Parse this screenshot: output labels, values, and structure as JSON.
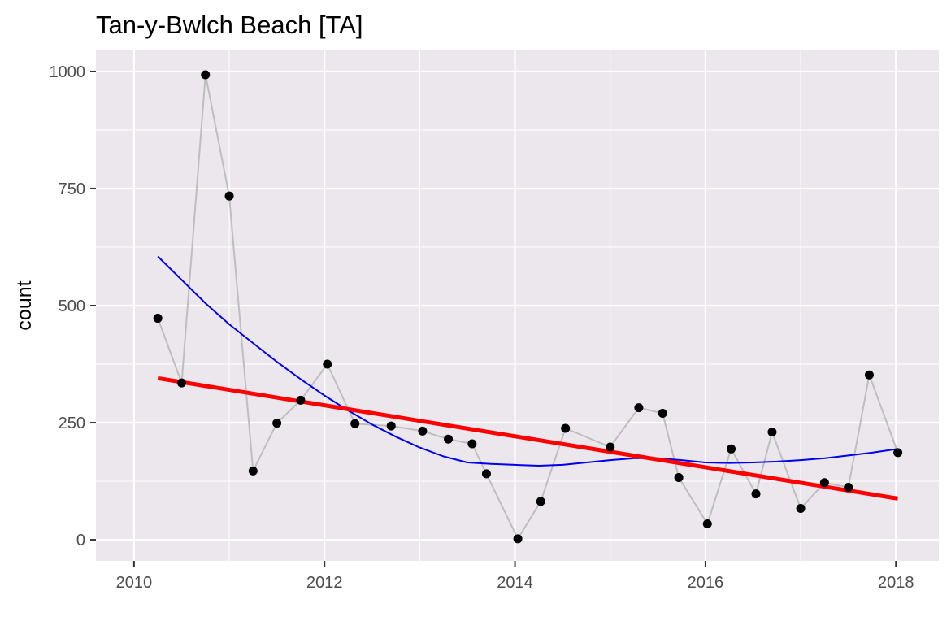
{
  "chart_data": {
    "type": "line",
    "title": "Tan-y-Bwlch Beach  [TA]",
    "xlabel": "",
    "ylabel": "count",
    "xlim": [
      2009.6,
      2018.45
    ],
    "ylim": [
      -45,
      1045
    ],
    "x_ticks": [
      2010,
      2012,
      2014,
      2016,
      2018
    ],
    "x_tick_labels": [
      "2010",
      "2012",
      "2014",
      "2016",
      "2018"
    ],
    "y_ticks": [
      0,
      250,
      500,
      750,
      1000
    ],
    "y_tick_labels": [
      "0",
      "250",
      "500",
      "750",
      "1000"
    ],
    "grid": true,
    "legend": "none",
    "series": [
      {
        "name": "observed",
        "style": "line+points",
        "line_color": "#bebebe",
        "point_color": "#000000",
        "points": [
          {
            "x": 2010.25,
            "y": 473
          },
          {
            "x": 2010.5,
            "y": 335
          },
          {
            "x": 2010.75,
            "y": 993
          },
          {
            "x": 2011.0,
            "y": 734
          },
          {
            "x": 2011.25,
            "y": 147
          },
          {
            "x": 2011.5,
            "y": 249
          },
          {
            "x": 2011.75,
            "y": 298
          },
          {
            "x": 2012.03,
            "y": 375
          },
          {
            "x": 2012.32,
            "y": 248
          },
          {
            "x": 2012.7,
            "y": 243
          },
          {
            "x": 2013.03,
            "y": 232
          },
          {
            "x": 2013.3,
            "y": 215
          },
          {
            "x": 2013.55,
            "y": 205
          },
          {
            "x": 2013.7,
            "y": 141
          },
          {
            "x": 2014.03,
            "y": 2
          },
          {
            "x": 2014.27,
            "y": 82
          },
          {
            "x": 2014.53,
            "y": 238
          },
          {
            "x": 2015.0,
            "y": 198
          },
          {
            "x": 2015.3,
            "y": 282
          },
          {
            "x": 2015.55,
            "y": 270
          },
          {
            "x": 2015.72,
            "y": 133
          },
          {
            "x": 2016.02,
            "y": 34
          },
          {
            "x": 2016.27,
            "y": 194
          },
          {
            "x": 2016.53,
            "y": 98
          },
          {
            "x": 2016.7,
            "y": 230
          },
          {
            "x": 2017.0,
            "y": 67
          },
          {
            "x": 2017.25,
            "y": 122
          },
          {
            "x": 2017.5,
            "y": 112
          },
          {
            "x": 2017.72,
            "y": 352
          },
          {
            "x": 2018.02,
            "y": 186
          }
        ]
      },
      {
        "name": "smooth",
        "style": "line",
        "line_color": "#0000ee",
        "points": [
          {
            "x": 2010.25,
            "y": 605
          },
          {
            "x": 2010.5,
            "y": 555
          },
          {
            "x": 2010.75,
            "y": 505
          },
          {
            "x": 2011.0,
            "y": 460
          },
          {
            "x": 2011.25,
            "y": 420
          },
          {
            "x": 2011.5,
            "y": 380
          },
          {
            "x": 2011.75,
            "y": 343
          },
          {
            "x": 2012.0,
            "y": 308
          },
          {
            "x": 2012.25,
            "y": 276
          },
          {
            "x": 2012.5,
            "y": 246
          },
          {
            "x": 2012.75,
            "y": 220
          },
          {
            "x": 2013.0,
            "y": 197
          },
          {
            "x": 2013.25,
            "y": 178
          },
          {
            "x": 2013.5,
            "y": 165
          },
          {
            "x": 2013.75,
            "y": 162
          },
          {
            "x": 2014.0,
            "y": 160
          },
          {
            "x": 2014.25,
            "y": 158
          },
          {
            "x": 2014.5,
            "y": 160
          },
          {
            "x": 2014.75,
            "y": 165
          },
          {
            "x": 2015.0,
            "y": 170
          },
          {
            "x": 2015.25,
            "y": 174
          },
          {
            "x": 2015.5,
            "y": 174
          },
          {
            "x": 2015.75,
            "y": 170
          },
          {
            "x": 2016.0,
            "y": 165
          },
          {
            "x": 2016.25,
            "y": 164
          },
          {
            "x": 2016.5,
            "y": 165
          },
          {
            "x": 2016.75,
            "y": 167
          },
          {
            "x": 2017.0,
            "y": 170
          },
          {
            "x": 2017.25,
            "y": 174
          },
          {
            "x": 2017.5,
            "y": 180
          },
          {
            "x": 2017.75,
            "y": 186
          },
          {
            "x": 2018.02,
            "y": 194
          }
        ]
      },
      {
        "name": "linear trend",
        "style": "line",
        "line_color": "#ff0000",
        "points": [
          {
            "x": 2010.25,
            "y": 345
          },
          {
            "x": 2018.02,
            "y": 88
          }
        ]
      }
    ]
  }
}
